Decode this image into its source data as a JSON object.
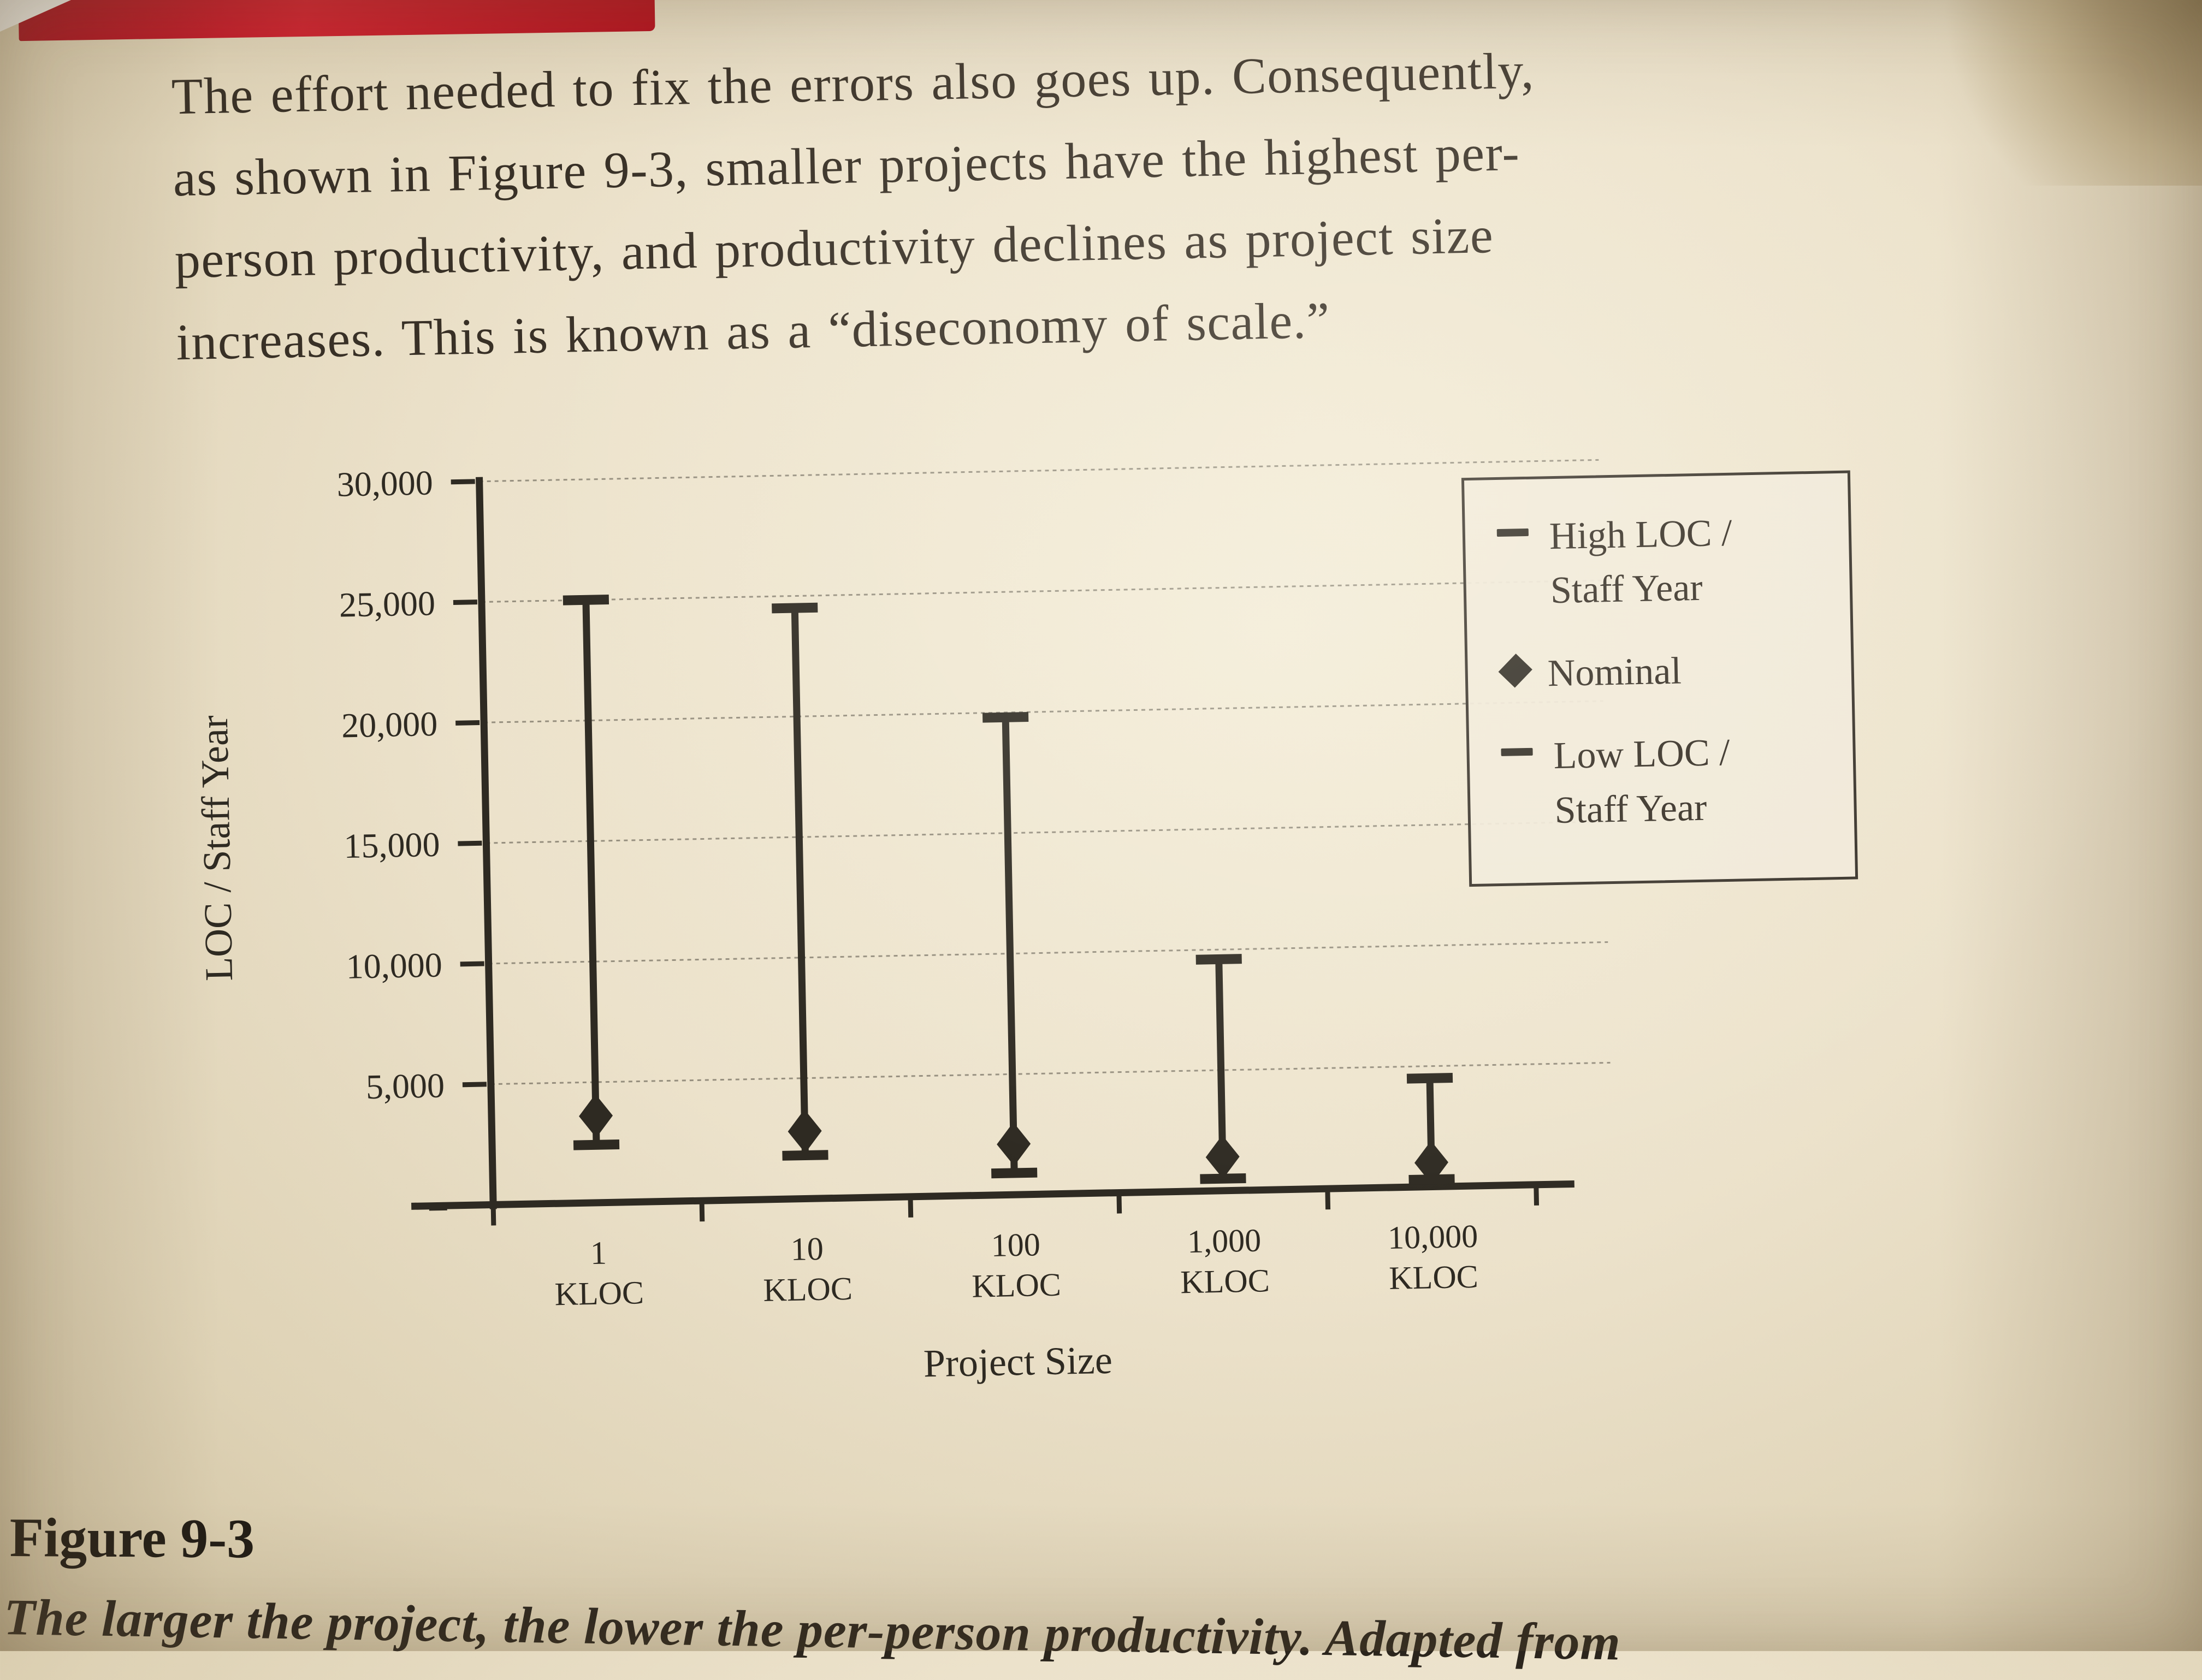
{
  "page": {
    "paragraph_lines": [
      "The effort needed to fix the errors also goes up. Consequently,",
      "as shown in Figure 9-3, smaller projects have the highest per-",
      "person productivity, and productivity declines as project size",
      "increases. This is known as a “diseconomy of scale.”"
    ],
    "figure_label": "Figure 9-3",
    "figure_caption": "The larger the project, the lower the per-person productivity. Adapted from"
  },
  "chart_data": {
    "type": "range-bar",
    "title": "",
    "xlabel": "Project Size",
    "ylabel": "LOC / Staff Year",
    "ylim": [
      0,
      30000
    ],
    "grid": "dotted-horizontal",
    "ink_color": "#2e2a22",
    "paper_color": "#ece2cb",
    "yticks": [
      {
        "value": 30000,
        "label": "30,000"
      },
      {
        "value": 25000,
        "label": "25,000"
      },
      {
        "value": 20000,
        "label": "20,000"
      },
      {
        "value": 15000,
        "label": "15,000"
      },
      {
        "value": 10000,
        "label": "10,000"
      },
      {
        "value": 5000,
        "label": "5,000"
      },
      {
        "value": 0,
        "label": "–"
      }
    ],
    "categories": [
      "1",
      "10",
      "100",
      "1,000",
      "10,000"
    ],
    "category_unit": "KLOC",
    "series": [
      {
        "name": "High LOC / Staff Year",
        "marker": "cap",
        "values": [
          25000,
          24500,
          19800,
          9600,
          4500
        ]
      },
      {
        "name": "Nominal",
        "marker": "diamond",
        "values": [
          3600,
          2800,
          2100,
          1400,
          1000
        ]
      },
      {
        "name": "Low LOC / Staff Year",
        "marker": "cap",
        "values": [
          2400,
          1800,
          900,
          500,
          300
        ]
      }
    ],
    "legend": {
      "position": "top-right",
      "entries": [
        {
          "marker": "cap",
          "lines": [
            "High LOC /",
            "Staff Year"
          ]
        },
        {
          "marker": "diamond",
          "lines": [
            "Nominal"
          ]
        },
        {
          "marker": "cap",
          "lines": [
            "Low LOC /",
            "Staff Year"
          ]
        }
      ]
    }
  }
}
